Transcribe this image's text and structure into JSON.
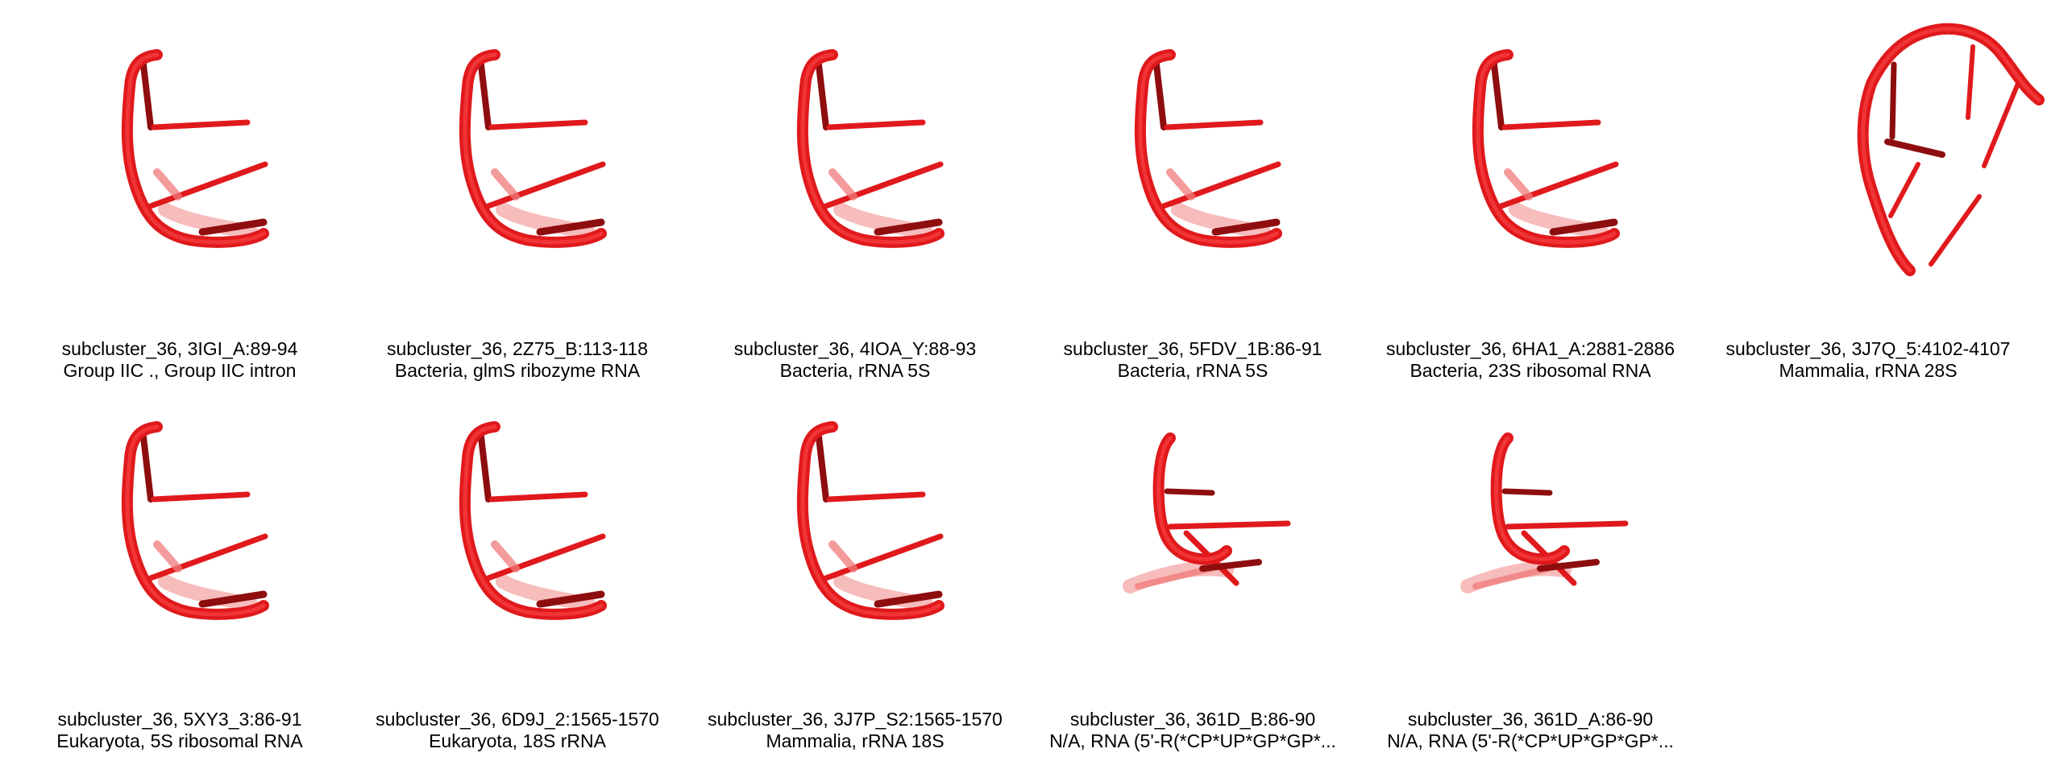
{
  "tiles": [
    {
      "title": "subcluster_36, 3IGI_A:89-94",
      "subtitle": "Group IIC ., Group IIC intron",
      "shape": "hairpin",
      "thumbnail": "rna-3d-structure-icon"
    },
    {
      "title": "subcluster_36, 2Z75_B:113-118",
      "subtitle": "Bacteria, glmS ribozyme RNA",
      "shape": "hairpin",
      "thumbnail": "rna-3d-structure-icon"
    },
    {
      "title": "subcluster_36, 4IOA_Y:88-93",
      "subtitle": "Bacteria, rRNA 5S",
      "shape": "hairpin",
      "thumbnail": "rna-3d-structure-icon"
    },
    {
      "title": "subcluster_36, 5FDV_1B:86-91",
      "subtitle": "Bacteria, rRNA 5S",
      "shape": "hairpin",
      "thumbnail": "rna-3d-structure-icon"
    },
    {
      "title": "subcluster_36, 6HA1_A:2881-2886",
      "subtitle": "Bacteria, 23S ribosomal RNA",
      "shape": "hairpin",
      "thumbnail": "rna-3d-structure-icon"
    },
    {
      "title": "subcluster_36, 3J7Q_5:4102-4107",
      "subtitle": "Mammalia, rRNA 28S",
      "shape": "open-loop",
      "thumbnail": "rna-3d-structure-icon"
    },
    {
      "title": "subcluster_36, 5XY3_3:86-91",
      "subtitle": "Eukaryota, 5S ribosomal RNA",
      "shape": "hairpin",
      "thumbnail": "rna-3d-structure-icon"
    },
    {
      "title": "subcluster_36, 6D9J_2:1565-1570",
      "subtitle": "Eukaryota, 18S rRNA",
      "shape": "hairpin",
      "thumbnail": "rna-3d-structure-icon"
    },
    {
      "title": "subcluster_36, 3J7P_S2:1565-1570",
      "subtitle": "Mammalia, rRNA 18S",
      "shape": "hairpin",
      "thumbnail": "rna-3d-structure-icon"
    },
    {
      "title": "subcluster_36, 361D_B:86-90",
      "subtitle": "N/A, RNA (5'-R(*CP*UP*GP*GP*...",
      "shape": "short",
      "thumbnail": "rna-3d-structure-icon"
    },
    {
      "title": "subcluster_36, 361D_A:86-90",
      "subtitle": "N/A, RNA (5'-R(*CP*UP*GP*GP*...",
      "shape": "short",
      "thumbnail": "rna-3d-structure-icon"
    }
  ],
  "colors": {
    "backbone": "#e0191c",
    "backbone_highlight": "#ff4a4a",
    "base_dark": "#8e0d0f",
    "base_light": "#f07a7a",
    "caption_text": "#000000",
    "background": "#ffffff"
  }
}
